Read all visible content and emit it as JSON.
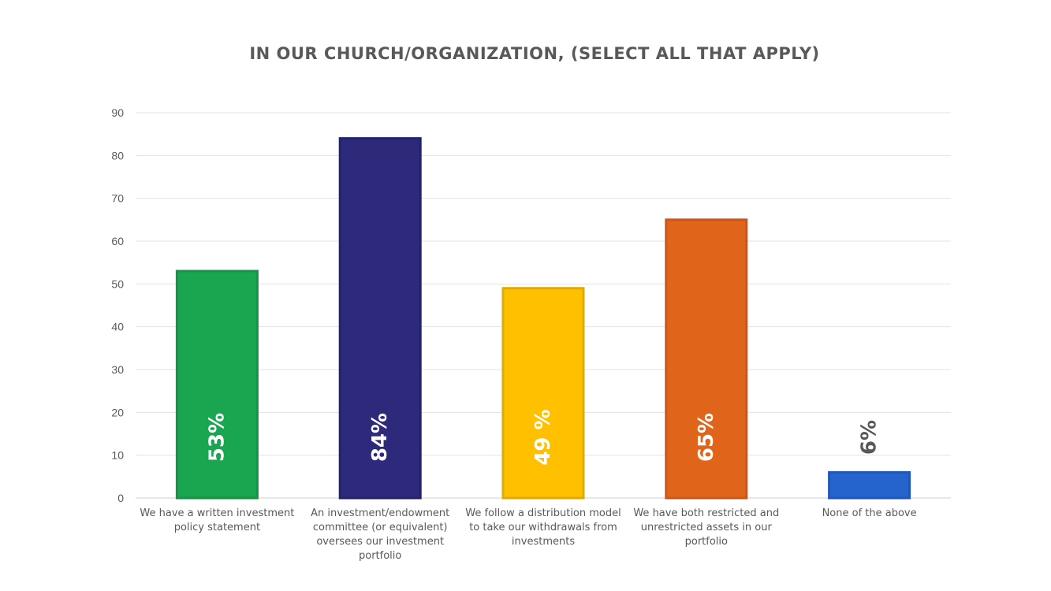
{
  "chart_data": {
    "type": "bar",
    "title": "IN OUR CHURCH/ORGANIZATION, (SELECT ALL THAT APPLY)",
    "xlabel": "",
    "ylabel": "",
    "ylim": [
      0,
      90
    ],
    "yticks": [
      0,
      10,
      20,
      30,
      40,
      50,
      60,
      70,
      80,
      90
    ],
    "grid": true,
    "categories": [
      "We have a written investment policy statement",
      "An investment/endowment committee (or equivalent) oversees our investment portfolio",
      "We follow a distribution model to take our withdrawals from investments",
      "We have both restricted and unrestricted assets in our portfolio",
      "None of the above"
    ],
    "values": [
      53,
      84,
      49,
      65,
      6
    ],
    "data_labels": [
      "53%",
      "84%",
      "49 %",
      "65%",
      "6%"
    ],
    "colors": [
      "#1aa551",
      "#2d2a7b",
      "#ffc000",
      "#e0641a",
      "#2464cc"
    ],
    "border_colors": [
      "#179248",
      "#25226a",
      "#e0ab00",
      "#c9561a",
      "#1e58b8"
    ],
    "label_colors": [
      "#ffffff",
      "#ffffff",
      "#ffffff",
      "#ffffff",
      "#595959"
    ]
  }
}
